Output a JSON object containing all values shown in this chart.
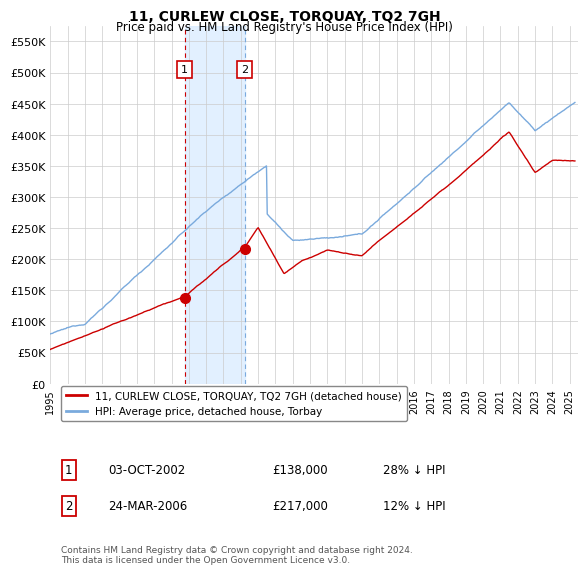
{
  "title": "11, CURLEW CLOSE, TORQUAY, TQ2 7GH",
  "subtitle": "Price paid vs. HM Land Registry's House Price Index (HPI)",
  "ylim": [
    0,
    575000
  ],
  "yticks": [
    0,
    50000,
    100000,
    150000,
    200000,
    250000,
    300000,
    350000,
    400000,
    450000,
    500000,
    550000
  ],
  "ytick_labels": [
    "£0",
    "£50K",
    "£100K",
    "£150K",
    "£200K",
    "£250K",
    "£300K",
    "£350K",
    "£400K",
    "£450K",
    "£500K",
    "£550K"
  ],
  "hpi_color": "#7aaadd",
  "price_color": "#cc0000",
  "sale1_date": "03-OCT-2002",
  "sale1_price": 138000,
  "sale1_hpi_diff": "28% ↓ HPI",
  "sale2_date": "24-MAR-2006",
  "sale2_price": 217000,
  "sale2_hpi_diff": "12% ↓ HPI",
  "legend_label1": "11, CURLEW CLOSE, TORQUAY, TQ2 7GH (detached house)",
  "legend_label2": "HPI: Average price, detached house, Torbay",
  "footer": "Contains HM Land Registry data © Crown copyright and database right 2024.\nThis data is licensed under the Open Government Licence v3.0.",
  "background_color": "#ffffff",
  "grid_color": "#cccccc",
  "shade_color": "#ddeeff",
  "sale1_x": 2002.75,
  "sale2_x": 2006.23,
  "sale1_y": 138000,
  "sale2_y": 217000,
  "xlim_start": 1995,
  "xlim_end": 2025.5
}
